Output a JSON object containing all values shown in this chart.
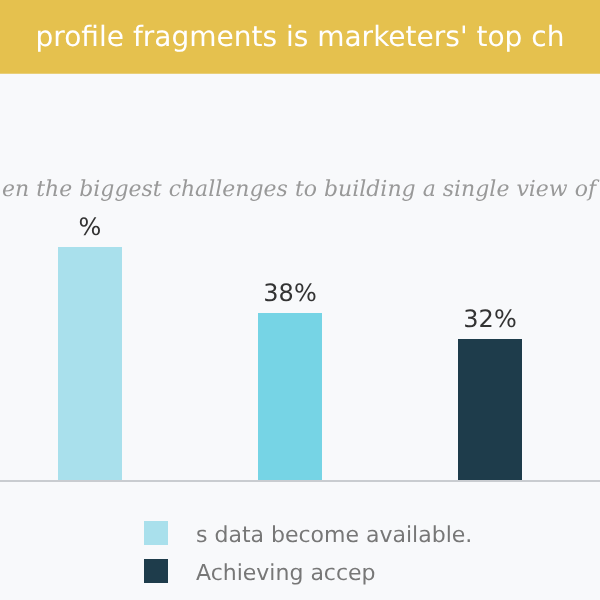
{
  "chart_data": {
    "type": "bar",
    "title": "profile fragments is marketers' top ch",
    "subtitle": "en the biggest challenges to building a single view of",
    "categories": [
      null,
      null,
      null
    ],
    "stacked": true,
    "series": [
      {
        "name": "s data become available.",
        "color": "#a9e0ec",
        "values": [
          53,
          null,
          null
        ],
        "value_labels": [
          "%",
          null,
          null
        ]
      },
      {
        "color": "#76d4e5",
        "values": [
          null,
          38,
          null
        ],
        "value_labels": [
          null,
          "38%",
          null
        ]
      },
      {
        "name": "Achieving accep",
        "color": "#1e3c4b",
        "values": [
          null,
          null,
          32
        ],
        "value_labels": [
          null,
          null,
          "32%"
        ]
      }
    ],
    "legend": "bottom"
  }
}
